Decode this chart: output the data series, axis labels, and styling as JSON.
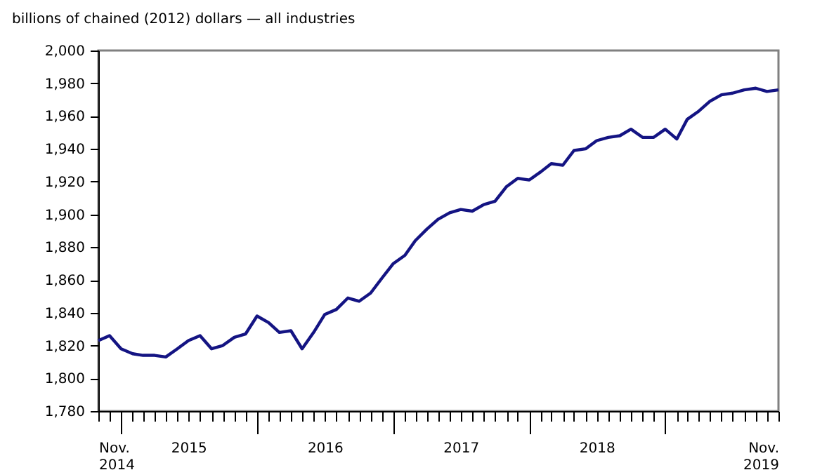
{
  "chart_data": {
    "type": "line",
    "ylabel": "billions of chained (2012) dollars — all industries",
    "x": [
      "2014-11",
      "2014-12",
      "2015-01",
      "2015-02",
      "2015-03",
      "2015-04",
      "2015-05",
      "2015-06",
      "2015-07",
      "2015-08",
      "2015-09",
      "2015-10",
      "2015-11",
      "2015-12",
      "2016-01",
      "2016-02",
      "2016-03",
      "2016-04",
      "2016-05",
      "2016-06",
      "2016-07",
      "2016-08",
      "2016-09",
      "2016-10",
      "2016-11",
      "2016-12",
      "2017-01",
      "2017-02",
      "2017-03",
      "2017-04",
      "2017-05",
      "2017-06",
      "2017-07",
      "2017-08",
      "2017-09",
      "2017-10",
      "2017-11",
      "2017-12",
      "2018-01",
      "2018-02",
      "2018-03",
      "2018-04",
      "2018-05",
      "2018-06",
      "2018-07",
      "2018-08",
      "2018-09",
      "2018-10",
      "2018-11",
      "2018-12",
      "2019-01",
      "2019-02",
      "2019-03",
      "2019-04",
      "2019-05",
      "2019-06",
      "2019-07",
      "2019-08",
      "2019-09",
      "2019-10",
      "2019-11"
    ],
    "series": [
      {
        "color": "#141483",
        "values": [
          1823,
          1826,
          1818,
          1815,
          1814,
          1814,
          1813,
          1818,
          1823,
          1826,
          1818,
          1820,
          1825,
          1827,
          1838,
          1834,
          1828,
          1829,
          1818,
          1828,
          1839,
          1842,
          1849,
          1847,
          1852,
          1861,
          1870,
          1875,
          1884,
          1891,
          1897,
          1901,
          1903,
          1902,
          1906,
          1908,
          1917,
          1922,
          1921,
          1926,
          1931,
          1930,
          1939,
          1940,
          1945,
          1947,
          1948,
          1952,
          1947,
          1947,
          1952,
          1946,
          1958,
          1963,
          1969,
          1973,
          1974,
          1976,
          1977,
          1975,
          1976
        ]
      }
    ],
    "xlim": [
      "2014-11",
      "2019-11"
    ],
    "xticks": [
      {
        "value": "2014-11",
        "label": "Nov.\n2014"
      },
      {
        "value": "2014-12",
        "label": null
      },
      {
        "value": "2015-01",
        "label": null
      },
      {
        "value": "2015-02",
        "label": null
      },
      {
        "value": "2015-03",
        "label": null
      },
      {
        "value": "2015-04",
        "label": null
      },
      {
        "value": "2015-05",
        "label": null
      },
      {
        "value": "2015-06",
        "label": null
      },
      {
        "value": "2015-07",
        "label": "2015"
      },
      {
        "value": "2015-08",
        "label": null
      },
      {
        "value": "2015-09",
        "label": null
      },
      {
        "value": "2015-10",
        "label": null
      },
      {
        "value": "2015-11",
        "label": null
      },
      {
        "value": "2015-12",
        "label": null
      },
      {
        "value": "2016-01",
        "label": null
      },
      {
        "value": "2016-02",
        "label": null
      },
      {
        "value": "2016-03",
        "label": null
      },
      {
        "value": "2016-04",
        "label": null
      },
      {
        "value": "2016-05",
        "label": null
      },
      {
        "value": "2016-06",
        "label": null
      },
      {
        "value": "2016-07",
        "label": "2016"
      },
      {
        "value": "2016-08",
        "label": null
      },
      {
        "value": "2016-09",
        "label": null
      },
      {
        "value": "2016-10",
        "label": null
      },
      {
        "value": "2016-11",
        "label": null
      },
      {
        "value": "2016-12",
        "label": null
      },
      {
        "value": "2017-01",
        "label": null
      },
      {
        "value": "2017-02",
        "label": null
      },
      {
        "value": "2017-03",
        "label": null
      },
      {
        "value": "2017-04",
        "label": null
      },
      {
        "value": "2017-05",
        "label": null
      },
      {
        "value": "2017-06",
        "label": null
      },
      {
        "value": "2017-07",
        "label": "2017"
      },
      {
        "value": "2017-08",
        "label": null
      },
      {
        "value": "2017-09",
        "label": null
      },
      {
        "value": "2017-10",
        "label": null
      },
      {
        "value": "2017-11",
        "label": null
      },
      {
        "value": "2017-12",
        "label": null
      },
      {
        "value": "2018-01",
        "label": null
      },
      {
        "value": "2018-02",
        "label": null
      },
      {
        "value": "2018-03",
        "label": null
      },
      {
        "value": "2018-04",
        "label": null
      },
      {
        "value": "2018-05",
        "label": null
      },
      {
        "value": "2018-06",
        "label": null
      },
      {
        "value": "2018-07",
        "label": "2018"
      },
      {
        "value": "2018-08",
        "label": null
      },
      {
        "value": "2018-09",
        "label": null
      },
      {
        "value": "2018-10",
        "label": null
      },
      {
        "value": "2018-11",
        "label": null
      },
      {
        "value": "2018-12",
        "label": null
      },
      {
        "value": "2019-01",
        "label": null
      },
      {
        "value": "2019-02",
        "label": null
      },
      {
        "value": "2019-03",
        "label": null
      },
      {
        "value": "2019-04",
        "label": null
      },
      {
        "value": "2019-05",
        "label": null
      },
      {
        "value": "2019-06",
        "label": null
      },
      {
        "value": "2019-07",
        "label": null
      },
      {
        "value": "2019-08",
        "label": null
      },
      {
        "value": "2019-09",
        "label": null
      },
      {
        "value": "2019-10",
        "label": null
      },
      {
        "value": "2019-11",
        "label": "Nov.\n2019"
      }
    ],
    "ylim": [
      1780,
      2000
    ],
    "yticks": [
      {
        "value": 1780,
        "label": "1,780"
      },
      {
        "value": 1800,
        "label": "1,800"
      },
      {
        "value": 1820,
        "label": "1,820"
      },
      {
        "value": 1840,
        "label": "1,840"
      },
      {
        "value": 1860,
        "label": "1,860"
      },
      {
        "value": 1880,
        "label": "1,880"
      },
      {
        "value": 1900,
        "label": "1,900"
      },
      {
        "value": 1920,
        "label": "1,920"
      },
      {
        "value": 1940,
        "label": "1,940"
      },
      {
        "value": 1960,
        "label": "1,960"
      },
      {
        "value": 1980,
        "label": "1,980"
      },
      {
        "value": 2000,
        "label": "2,000"
      }
    ],
    "grid": false,
    "legend": false,
    "marker": "none",
    "line_style": "solid"
  }
}
